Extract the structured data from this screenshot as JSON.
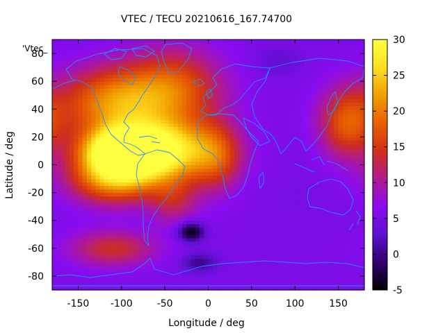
{
  "chart_data": {
    "type": "heatmap",
    "title": "VTEC / TECU 20210616_167.74700",
    "xlabel": "Longitude / deg",
    "ylabel": "Latitude / deg",
    "key_label": "'Vtec_",
    "xlim": [
      -180,
      180
    ],
    "ylim": [
      -90,
      90
    ],
    "xticks": [
      -150,
      -100,
      -50,
      0,
      50,
      100,
      150
    ],
    "yticks": [
      -80,
      -60,
      -40,
      -20,
      0,
      20,
      40,
      60,
      80
    ],
    "colorbar": {
      "range": [
        -5,
        30
      ],
      "ticks": [
        -5,
        0,
        5,
        10,
        15,
        20,
        25,
        30
      ],
      "palette": [
        "#000000",
        "#300070",
        "#6010d0",
        "#8a0cf0",
        "#b01a90",
        "#d03018",
        "#e86000",
        "#f0a000",
        "#ffe020",
        "#ffff40"
      ]
    },
    "grid": false,
    "coastline_color": "#1e90ff",
    "field_features": [
      {
        "lon": -60,
        "lat": 10,
        "value": 29,
        "lon_width": 95,
        "lat_width": 30
      },
      {
        "lon": -100,
        "lat": 10,
        "value": 26,
        "lon_width": 60,
        "lat_width": 22
      },
      {
        "lon": -110,
        "lat": -10,
        "value": 20,
        "lon_width": 70,
        "lat_width": 25
      },
      {
        "lon": -110,
        "lat": 45,
        "value": 20,
        "lon_width": 90,
        "lat_width": 35
      },
      {
        "lon": -40,
        "lat": 55,
        "value": 17,
        "lon_width": 80,
        "lat_width": 40
      },
      {
        "lon": 160,
        "lat": 30,
        "value": 17,
        "lon_width": 45,
        "lat_width": 35
      },
      {
        "lon": 10,
        "lat": 5,
        "value": 13,
        "lon_width": 40,
        "lat_width": 35
      },
      {
        "lon": -110,
        "lat": -60,
        "value": 14,
        "lon_width": 70,
        "lat_width": 18
      },
      {
        "lon": -40,
        "lat": -25,
        "value": 12,
        "lon_width": 40,
        "lat_width": 25
      },
      {
        "lon": -20,
        "lat": -48,
        "value": -5,
        "lon_width": 22,
        "lat_width": 10
      },
      {
        "lon": -10,
        "lat": -70,
        "value": 0,
        "lon_width": 30,
        "lat_width": 10
      },
      {
        "lon": 80,
        "lat": 75,
        "value": 3,
        "lon_width": 40,
        "lat_width": 15
      },
      {
        "lon": 100,
        "lat": -20,
        "value": 5,
        "lon_width": 70,
        "lat_width": 40
      }
    ]
  }
}
